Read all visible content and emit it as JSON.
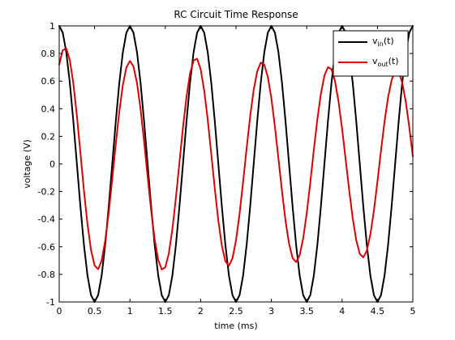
{
  "chart_data": {
    "type": "line",
    "title": "RC Circuit Time Response",
    "xlabel": "time (ms)",
    "ylabel": "voltage (V)",
    "xlim": [
      0,
      5
    ],
    "ylim": [
      -1,
      1
    ],
    "xticks": [
      0,
      0.5,
      1,
      1.5,
      2,
      2.5,
      3,
      3.5,
      4,
      4.5,
      5
    ],
    "xtick_labels": [
      "0",
      "0.5",
      "1",
      "1.5",
      "2",
      "2.5",
      "3",
      "3.5",
      "4",
      "4.5",
      "5"
    ],
    "yticks": [
      -1,
      -0.8,
      -0.6,
      -0.4,
      -0.2,
      0,
      0.2,
      0.4,
      0.6,
      0.8,
      1
    ],
    "ytick_labels": [
      "-1",
      "-0.8",
      "-0.6",
      "-0.4",
      "-0.2",
      "0",
      "0.2",
      "0.4",
      "0.6",
      "0.8",
      "1"
    ],
    "grid": false,
    "legend_position": "top-right",
    "series": [
      {
        "name": "v_in(t)",
        "legend_main": "v",
        "legend_sub": "in",
        "legend_suffix": "(t)",
        "color": "#000000",
        "x": [
          0,
          0.05,
          0.1,
          0.15,
          0.2,
          0.25,
          0.3,
          0.35,
          0.4,
          0.45,
          0.5,
          0.55,
          0.6,
          0.65,
          0.7,
          0.75,
          0.8,
          0.85,
          0.9,
          0.95,
          1.0,
          1.05,
          1.1,
          1.15,
          1.2,
          1.25,
          1.3,
          1.35,
          1.4,
          1.45,
          1.5,
          1.55,
          1.6,
          1.65,
          1.7,
          1.75,
          1.8,
          1.85,
          1.9,
          1.95,
          2.0,
          2.05,
          2.1,
          2.15,
          2.2,
          2.25,
          2.3,
          2.35,
          2.4,
          2.45,
          2.5,
          2.55,
          2.6,
          2.65,
          2.7,
          2.75,
          2.8,
          2.85,
          2.9,
          2.95,
          3.0,
          3.05,
          3.1,
          3.15,
          3.2,
          3.25,
          3.3,
          3.35,
          3.4,
          3.45,
          3.5,
          3.55,
          3.6,
          3.65,
          3.7,
          3.75,
          3.8,
          3.85,
          3.9,
          3.95,
          4.0,
          4.05,
          4.1,
          4.15,
          4.2,
          4.25,
          4.3,
          4.35,
          4.4,
          4.45,
          4.5,
          4.55,
          4.6,
          4.65,
          4.7,
          4.75,
          4.8,
          4.85,
          4.9,
          4.95,
          5.0
        ],
        "y": [
          1.0,
          0.951,
          0.809,
          0.588,
          0.309,
          0.0,
          -0.309,
          -0.588,
          -0.809,
          -0.951,
          -1.0,
          -0.951,
          -0.809,
          -0.588,
          -0.309,
          0.0,
          0.309,
          0.588,
          0.809,
          0.951,
          1.0,
          0.951,
          0.809,
          0.588,
          0.309,
          0.0,
          -0.309,
          -0.588,
          -0.809,
          -0.951,
          -1.0,
          -0.951,
          -0.809,
          -0.588,
          -0.309,
          0.0,
          0.309,
          0.588,
          0.809,
          0.951,
          1.0,
          0.951,
          0.809,
          0.588,
          0.309,
          0.0,
          -0.309,
          -0.588,
          -0.809,
          -0.951,
          -1.0,
          -0.951,
          -0.809,
          -0.588,
          -0.309,
          0.0,
          0.309,
          0.588,
          0.809,
          0.951,
          1.0,
          0.951,
          0.809,
          0.588,
          0.309,
          0.0,
          -0.309,
          -0.588,
          -0.809,
          -0.951,
          -1.0,
          -0.951,
          -0.809,
          -0.588,
          -0.309,
          0.0,
          0.309,
          0.588,
          0.809,
          0.951,
          1.0,
          0.951,
          0.809,
          0.588,
          0.309,
          0.0,
          -0.309,
          -0.588,
          -0.809,
          -0.951,
          -1.0,
          -0.951,
          -0.809,
          -0.588,
          -0.309,
          0.0,
          0.309,
          0.588,
          0.809,
          0.951,
          1.0
        ]
      },
      {
        "name": "v_out(t)",
        "legend_main": "v",
        "legend_sub": "out",
        "legend_suffix": "(t)",
        "color": "#e00000",
        "x": [
          0,
          0.05,
          0.1,
          0.15,
          0.2,
          0.25,
          0.3,
          0.35,
          0.4,
          0.45,
          0.5,
          0.55,
          0.6,
          0.65,
          0.7,
          0.75,
          0.8,
          0.85,
          0.9,
          0.95,
          1.0,
          1.05,
          1.1,
          1.15,
          1.2,
          1.25,
          1.3,
          1.35,
          1.4,
          1.45,
          1.5,
          1.55,
          1.6,
          1.65,
          1.7,
          1.75,
          1.8,
          1.85,
          1.9,
          1.95,
          2.0,
          2.05,
          2.1,
          2.15,
          2.2,
          2.25,
          2.3,
          2.35,
          2.4,
          2.45,
          2.5,
          2.55,
          2.6,
          2.65,
          2.7,
          2.75,
          2.8,
          2.85,
          2.9,
          2.95,
          3.0,
          3.05,
          3.1,
          3.15,
          3.2,
          3.25,
          3.3,
          3.35,
          3.4,
          3.45,
          3.5,
          3.55,
          3.6,
          3.65,
          3.7,
          3.75,
          3.8,
          3.85,
          3.9,
          3.95,
          4.0,
          4.05,
          4.1,
          4.15,
          4.2,
          4.25,
          4.3,
          4.35,
          4.4,
          4.45,
          4.5,
          4.55,
          4.6,
          4.65,
          4.7,
          4.75,
          4.8,
          4.85,
          4.9,
          4.95,
          5.0
        ],
        "y": [
          0.72,
          0.824,
          0.836,
          0.752,
          0.583,
          0.35,
          0.08,
          -0.194,
          -0.437,
          -0.624,
          -0.736,
          -0.763,
          -0.7,
          -0.558,
          -0.353,
          -0.109,
          0.145,
          0.381,
          0.572,
          0.699,
          0.746,
          0.706,
          0.586,
          0.398,
          0.163,
          -0.091,
          -0.337,
          -0.547,
          -0.695,
          -0.765,
          -0.749,
          -0.648,
          -0.474,
          -0.246,
          0.01,
          0.264,
          0.487,
          0.655,
          0.75,
          0.762,
          0.686,
          0.533,
          0.32,
          0.073,
          -0.18,
          -0.411,
          -0.593,
          -0.706,
          -0.737,
          -0.684,
          -0.554,
          -0.362,
          -0.131,
          0.113,
          0.344,
          0.537,
          0.671,
          0.734,
          0.719,
          0.63,
          0.475,
          0.27,
          0.038,
          -0.197,
          -0.411,
          -0.578,
          -0.682,
          -0.711,
          -0.661,
          -0.539,
          -0.356,
          -0.135,
          0.1,
          0.323,
          0.509,
          0.64,
          0.701,
          0.686,
          0.599,
          0.45,
          0.254,
          0.034,
          -0.189,
          -0.393,
          -0.553,
          -0.652,
          -0.677,
          -0.628,
          -0.511,
          -0.337,
          -0.127,
          0.096,
          0.307,
          0.482,
          0.607,
          0.672,
          0.666,
          0.589,
          0.452,
          0.266,
          0.056
        ]
      }
    ]
  }
}
